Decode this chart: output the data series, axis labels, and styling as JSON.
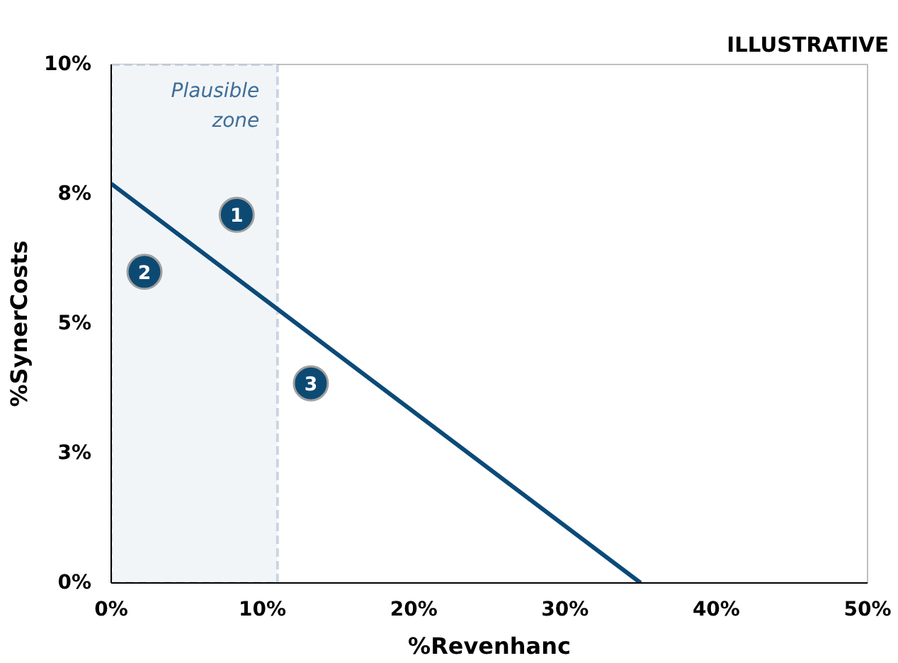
{
  "chart_data": {
    "type": "line",
    "xlabel": "%Revenhanc",
    "ylabel": "%SynerCosts",
    "xlim": [
      0,
      50
    ],
    "ylim": [
      0,
      10
    ],
    "xticks": [
      {
        "value": 0,
        "label": "0%"
      },
      {
        "value": 10,
        "label": "10%"
      },
      {
        "value": 20,
        "label": "20%"
      },
      {
        "value": 30,
        "label": "30%"
      },
      {
        "value": 40,
        "label": "40%"
      },
      {
        "value": 50,
        "label": "50%"
      }
    ],
    "yticks": [
      {
        "value": 0,
        "label": "0%"
      },
      {
        "value": 2.5,
        "label": "3%"
      },
      {
        "value": 5,
        "label": "5%"
      },
      {
        "value": 7.5,
        "label": "8%"
      },
      {
        "value": 10,
        "label": "10%"
      }
    ],
    "series": [
      {
        "color": "#0b4a78",
        "x": [
          0,
          35
        ],
        "values": [
          7.7,
          0
        ]
      },
      {
        "type": "scatter",
        "marker": "circle",
        "color": "#0d4a73",
        "x": [
          8.3,
          2.2,
          13.2
        ],
        "values": [
          7.1,
          6.0,
          3.85
        ]
      }
    ],
    "bands": [
      {
        "axis": "x",
        "from": 0,
        "to": 11,
        "label": "Plausible zone",
        "color": "#f2f5f8"
      }
    ],
    "annotations": [
      "ILLUSTRATIVE",
      {
        "text": "1",
        "x": 8.3,
        "y": 7.1
      },
      {
        "text": "2",
        "x": 2.2,
        "y": 6.0
      },
      {
        "text": "3",
        "x": 13.2,
        "y": 3.85
      }
    ],
    "grid": false,
    "line_style": "solid"
  }
}
